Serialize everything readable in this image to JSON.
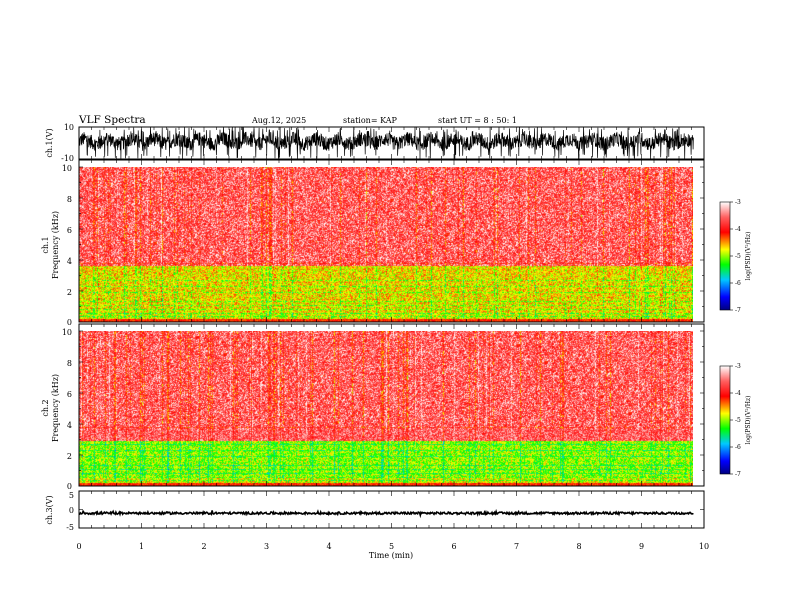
{
  "header": {
    "title": "VLF Spectra",
    "date": "Aug.12, 2025",
    "station": "station= KAP",
    "start_ut": "start UT = 8 : 50: 1"
  },
  "chart_data": [
    {
      "type": "line",
      "name": "ch1-waveform",
      "ylabel": "ch.1(V)",
      "ylim": [
        -10,
        10
      ],
      "yticks": [
        "10",
        "-10"
      ],
      "signal": "dense noise, mostly -4..6 V, clipped spikes to ±10 V",
      "xlim": [
        0,
        10
      ]
    },
    {
      "type": "heatmap",
      "name": "ch1-spectrogram",
      "ylabel": "ch.1\nFrequency (kHz)",
      "ylabel_lines": [
        "ch.1",
        "Frequency (kHz)"
      ],
      "ylim": [
        0,
        10
      ],
      "yticks": [
        "0",
        "2",
        "4",
        "6",
        "8",
        "10"
      ],
      "x_extent_min": 9.83,
      "colorbar": {
        "label": "log(PSD)(V²/Hz)",
        "range": [
          -7,
          -3
        ],
        "ticks": [
          "-3",
          "-4",
          "-5",
          "-6",
          "-7"
        ],
        "colormap": [
          "#000080",
          "#0000ff",
          "#00c8ff",
          "#00ff00",
          "#ffff00",
          "#ff0000",
          "#ffffff"
        ]
      },
      "bands": [
        {
          "f_low": 0.2,
          "f_high": 0.6,
          "level": -4.8
        },
        {
          "f_low": 0.6,
          "f_high": 3.6,
          "level": -4.7
        },
        {
          "f_low": 3.6,
          "f_high": 10,
          "level": -3.6
        }
      ]
    },
    {
      "type": "heatmap",
      "name": "ch2-spectrogram",
      "ylabel": "ch.2\nFrequency (kHz)",
      "ylabel_lines": [
        "ch.2",
        "Frequency (kHz)"
      ],
      "ylim": [
        0,
        10
      ],
      "yticks": [
        "0",
        "2",
        "4",
        "6",
        "8",
        "10"
      ],
      "x_extent_min": 9.83,
      "colorbar": {
        "label": "log(PSD)(V²/Hz)",
        "range": [
          -7,
          -3
        ],
        "ticks": [
          "-3",
          "-4",
          "-5",
          "-6",
          "-7"
        ]
      },
      "bands": [
        {
          "f_low": 0.2,
          "f_high": 0.6,
          "level": -4.8
        },
        {
          "f_low": 0.6,
          "f_high": 2.9,
          "level": -5.0
        },
        {
          "f_low": 2.9,
          "f_high": 10,
          "level": -3.6
        }
      ]
    },
    {
      "type": "line",
      "name": "ch3-waveform",
      "ylabel": "ch.3(V)",
      "ylim": [
        -5,
        5
      ],
      "yticks": [
        "5",
        "0",
        "-5"
      ],
      "signal": "nearly constant around -1 V with small ±0.3 V jitter",
      "xlim": [
        0,
        10
      ]
    }
  ],
  "x_axis": {
    "label": "Time (min)",
    "ticks": [
      "0",
      "1",
      "2",
      "3",
      "4",
      "5",
      "6",
      "7",
      "8",
      "9",
      "10"
    ],
    "range": [
      0,
      10
    ]
  }
}
